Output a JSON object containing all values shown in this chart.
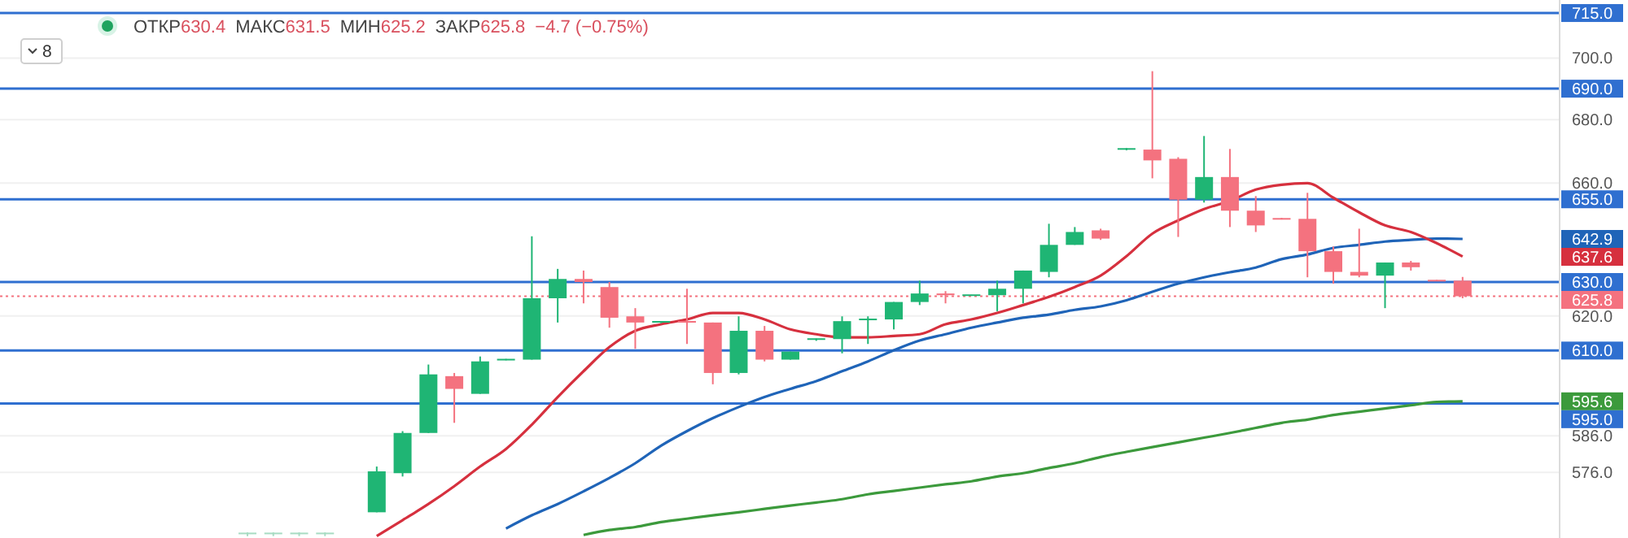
{
  "chart_data": {
    "type": "candlestick",
    "log": true,
    "grid": "y",
    "categories": [
      null,
      null,
      null,
      null,
      null,
      null,
      null,
      null,
      null,
      null,
      null,
      null,
      null,
      null,
      null,
      null,
      null,
      null,
      null,
      null,
      null,
      null,
      null,
      null,
      null,
      null,
      null,
      null,
      null,
      null,
      null,
      null,
      null,
      null,
      null,
      null,
      null,
      null,
      null,
      null,
      null,
      null,
      null,
      null,
      null,
      null,
      null,
      null
    ],
    "ohlc": [
      [
        559.7,
        560.0,
        559.0,
        559.7
      ],
      [
        559.7,
        560.0,
        559.0,
        559.7
      ],
      [
        559.7,
        560.0,
        559.0,
        559.7
      ],
      [
        559.7,
        560.0,
        559.0,
        559.7
      ],
      null,
      [
        565.3,
        577.6,
        565.3,
        576.3
      ],
      [
        575.8,
        587.3,
        574.9,
        586.8
      ],
      [
        586.8,
        606.0,
        586.8,
        603.2
      ],
      [
        602.7,
        603.6,
        589.6,
        599.1
      ],
      [
        597.7,
        608.3,
        597.7,
        606.9
      ],
      [
        607.4,
        607.6,
        607.2,
        607.4
      ],
      [
        607.4,
        643.7,
        607.4,
        625.2
      ],
      [
        625.2,
        633.9,
        618.1,
        630.9
      ],
      [
        630.9,
        633.4,
        623.7,
        630.0
      ],
      [
        628.5,
        630.0,
        616.6,
        619.5
      ],
      [
        619.9,
        622.3,
        610.5,
        618.1
      ],
      [
        618.3,
        618.5,
        617.9,
        618.3
      ],
      [
        618.5,
        628.0,
        611.9,
        618.1
      ],
      [
        618.1,
        618.1,
        600.4,
        603.6
      ],
      [
        603.6,
        619.9,
        603.2,
        615.7
      ],
      [
        615.7,
        617.1,
        606.9,
        607.4
      ],
      [
        607.4,
        609.7,
        607.4,
        609.7
      ],
      [
        613.3,
        613.5,
        612.8,
        613.3
      ],
      [
        613.3,
        619.9,
        609.2,
        618.5
      ],
      [
        619.0,
        619.9,
        611.9,
        619.0
      ],
      [
        619.0,
        624.1,
        616.1,
        624.1
      ],
      [
        624.1,
        630.4,
        623.2,
        626.6
      ],
      [
        626.6,
        627.3,
        623.7,
        626.1
      ],
      [
        626.1,
        626.2,
        625.9,
        626.1
      ],
      [
        626.1,
        630.4,
        621.4,
        628.0
      ],
      [
        628.0,
        633.4,
        623.7,
        633.4
      ],
      [
        633.0,
        647.5,
        631.4,
        641.1
      ],
      [
        641.1,
        646.5,
        641.1,
        645.0
      ],
      [
        645.5,
        646.0,
        642.6,
        643.0
      ],
      [
        670.7,
        671.0,
        670.3,
        670.7
      ],
      [
        670.5,
        695.7,
        661.5,
        667.1
      ],
      [
        667.6,
        668.1,
        643.5,
        654.9
      ],
      [
        654.9,
        674.8,
        654.0,
        661.9
      ],
      [
        661.9,
        670.7,
        646.5,
        651.5
      ],
      [
        651.5,
        656.0,
        645.0,
        647.0
      ],
      [
        649.0,
        649.3,
        648.8,
        649.0
      ],
      [
        649.0,
        657.0,
        631.4,
        639.2
      ],
      [
        639.2,
        640.6,
        629.5,
        633.0
      ],
      [
        633.0,
        646.0,
        631.4,
        631.9
      ],
      [
        631.9,
        635.8,
        622.3,
        635.8
      ],
      [
        635.8,
        636.3,
        633.4,
        634.4
      ],
      [
        630.4,
        630.6,
        630.3,
        630.4
      ],
      [
        630.4,
        631.5,
        625.2,
        625.8
      ]
    ],
    "colors": [
      "#a8dcc3",
      "#a8dcc3",
      "#a8dcc3",
      "#a8dcc3",
      null,
      "#1fb574",
      "#1fb574",
      "#1fb574",
      "#f4727f",
      "#1fb574",
      "#1fb574",
      "#1fb574",
      "#1fb574",
      "#f4727f",
      "#f4727f",
      "#f4727f",
      "#1fb574",
      "#f4727f",
      "#f4727f",
      "#1fb574",
      "#f4727f",
      "#1fb574",
      "#1fb574",
      "#1fb574",
      "#1fb574",
      "#1fb574",
      "#1fb574",
      "#f4727f",
      "#1fb574",
      "#1fb574",
      "#1fb574",
      "#1fb574",
      "#1fb574",
      "#f4727f",
      "#1fb574",
      "#f4727f",
      "#f4727f",
      "#1fb574",
      "#f4727f",
      "#f4727f",
      "#f4727f",
      "#f4727f",
      "#f4727f",
      "#f4727f",
      "#1fb574",
      "#f4727f",
      "#f4727f",
      "#f4727f"
    ],
    "series": [
      {
        "type": "line",
        "color": "#1f64b8",
        "values": [
          null,
          null,
          null,
          null,
          null,
          null,
          null,
          null,
          null,
          null,
          561.0,
          564.5,
          567.5,
          570.9,
          574.5,
          578.5,
          583.3,
          587.3,
          590.9,
          594.0,
          596.8,
          599.1,
          601.3,
          604.1,
          606.9,
          610.1,
          612.9,
          614.7,
          616.6,
          618.1,
          619.5,
          620.4,
          621.8,
          622.8,
          624.6,
          627.1,
          629.5,
          631.4,
          632.9,
          634.3,
          636.8,
          638.2,
          640.2,
          641.1,
          642.1,
          642.6,
          643.0,
          642.9
        ]
      },
      {
        "type": "line",
        "color": "#d6303e",
        "values": [
          null,
          null,
          null,
          null,
          null,
          559.0,
          563.2,
          567.5,
          572.3,
          577.6,
          582.4,
          589.1,
          596.8,
          604.1,
          611.0,
          615.7,
          617.6,
          619.0,
          620.9,
          620.9,
          619.0,
          616.1,
          614.7,
          613.8,
          613.8,
          614.2,
          614.7,
          617.6,
          619.0,
          620.9,
          623.2,
          625.6,
          628.5,
          631.9,
          637.7,
          644.5,
          648.5,
          652.0,
          654.5,
          658.0,
          659.5,
          660.0,
          655.5,
          651.0,
          647.0,
          645.0,
          641.6,
          637.6
        ]
      },
      {
        "type": "line",
        "color": "#3c9a3c",
        "values": [
          null,
          null,
          null,
          null,
          null,
          null,
          null,
          null,
          null,
          null,
          null,
          null,
          null,
          559.3,
          560.6,
          561.4,
          562.7,
          563.6,
          564.5,
          565.3,
          566.2,
          567.1,
          567.9,
          568.8,
          570.1,
          571.0,
          571.9,
          572.8,
          573.6,
          574.9,
          575.8,
          577.2,
          578.5,
          580.2,
          581.6,
          582.9,
          584.2,
          585.5,
          586.8,
          588.2,
          589.6,
          590.5,
          591.8,
          592.7,
          593.6,
          594.5,
          595.4,
          595.6
        ]
      }
    ],
    "ylim": [
      558.5,
      719.4
    ],
    "yticks": [
      {
        "value": 700,
        "label": "700.0"
      },
      {
        "value": 680,
        "label": "680.0"
      },
      {
        "value": 660,
        "label": "660.0"
      },
      {
        "value": 620,
        "label": "620.0"
      },
      {
        "value": 586,
        "label": "586.0"
      },
      {
        "value": 576,
        "label": "576.0"
      }
    ],
    "ref_lines": [
      {
        "axis": "y",
        "value": 715,
        "label": "715.0",
        "color": "#2f6fd0"
      },
      {
        "axis": "y",
        "value": 690,
        "label": "690.0",
        "color": "#2f6fd0"
      },
      {
        "axis": "y",
        "value": 655,
        "label": "655.0",
        "color": "#2f6fd0"
      },
      {
        "axis": "y",
        "value": 630,
        "label": "630.0",
        "color": "#2f6fd0"
      },
      {
        "axis": "y",
        "value": 610,
        "label": "610.0",
        "color": "#2f6fd0"
      },
      {
        "axis": "y",
        "value": 595,
        "label": "595.0",
        "color": "#2f6fd0"
      },
      {
        "axis": "y",
        "value": 625.8,
        "label": "625.8",
        "color": "#f4727f",
        "line_style": "dotted"
      }
    ],
    "annotations": [
      "ОТКР",
      "630.4",
      "МАКС",
      "631.5",
      "МИН",
      "625.2",
      "ЗАКР",
      "625.8",
      "−4.7 (−0.75%)",
      "8",
      "642.9",
      "637.6",
      "595.6"
    ]
  }
}
